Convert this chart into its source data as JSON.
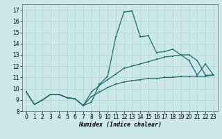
{
  "xlabel": "Humidex (Indice chaleur)",
  "background_color": "#cce8e8",
  "grid_color": "#aad4d4",
  "line_color": "#1a6b6b",
  "xlim": [
    -0.5,
    23.5
  ],
  "ylim": [
    8.0,
    17.5
  ],
  "xticks": [
    0,
    1,
    2,
    3,
    4,
    5,
    6,
    7,
    8,
    9,
    10,
    11,
    12,
    13,
    14,
    15,
    16,
    17,
    18,
    19,
    20,
    21,
    22,
    23
  ],
  "yticks": [
    8,
    9,
    10,
    11,
    12,
    13,
    14,
    15,
    16,
    17
  ],
  "line1_y": [
    9.7,
    8.6,
    9.0,
    9.5,
    9.5,
    9.2,
    9.1,
    8.5,
    8.8,
    10.4,
    11.1,
    14.6,
    16.8,
    16.9,
    14.6,
    14.7,
    13.2,
    13.3,
    13.5,
    13.0,
    12.5,
    11.2,
    12.2,
    11.2
  ],
  "line2_y": [
    9.7,
    8.6,
    9.0,
    9.5,
    9.5,
    9.2,
    9.1,
    8.5,
    9.7,
    10.3,
    10.8,
    11.3,
    11.8,
    12.0,
    12.2,
    12.4,
    12.6,
    12.8,
    12.9,
    13.0,
    13.0,
    12.5,
    11.2,
    11.2
  ],
  "line3_y": [
    9.7,
    8.6,
    9.0,
    9.5,
    9.5,
    9.2,
    9.1,
    8.5,
    9.3,
    9.7,
    10.1,
    10.4,
    10.6,
    10.7,
    10.8,
    10.9,
    10.9,
    11.0,
    11.0,
    11.1,
    11.1,
    11.1,
    11.1,
    11.2
  ],
  "xlabel_fontsize": 6,
  "tick_fontsize": 5.5,
  "linewidth": 0.9,
  "markersize": 1.8
}
